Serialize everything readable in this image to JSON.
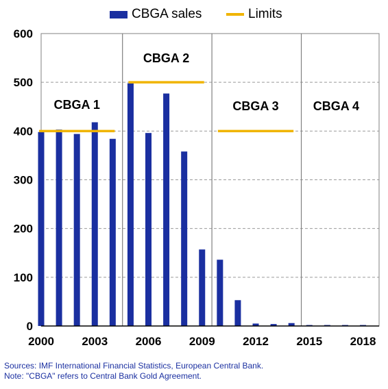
{
  "chart_data": {
    "type": "bar",
    "legend": {
      "bar_label": "CBGA sales",
      "line_label": "Limits",
      "placement": "top"
    },
    "x": [
      2000,
      2001,
      2002,
      2003,
      2004,
      2005,
      2006,
      2007,
      2008,
      2009,
      2010,
      2011,
      2012,
      2013,
      2014,
      2015,
      2016,
      2017,
      2018
    ],
    "series": [
      {
        "name": "CBGA sales",
        "values": [
          398,
          403,
          394,
          418,
          384,
          498,
          396,
          477,
          358,
          157,
          136,
          53,
          5,
          4,
          6,
          2,
          2,
          2,
          2
        ]
      }
    ],
    "limits": [
      {
        "label": "CBGA 1",
        "start": 2000,
        "end": 2004,
        "value": 400
      },
      {
        "label": "CBGA 2",
        "start": 2005,
        "end": 2009,
        "value": 500
      },
      {
        "label": "CBGA 3",
        "start": 2010,
        "end": 2014,
        "value": 400
      },
      {
        "label": "CBGA 4",
        "start": 2015,
        "end": 2018,
        "value": null
      }
    ],
    "x_tick_labels": [
      "2000",
      "2003",
      "2006",
      "2009",
      "2012",
      "2015",
      "2018"
    ],
    "y_tick_labels": [
      "0",
      "100",
      "200",
      "300",
      "400",
      "500",
      "600"
    ],
    "ylim": [
      0,
      600
    ],
    "grid": "horizontal dashed",
    "colors": {
      "bars": "#1a2fa0",
      "limits": "#f0b400",
      "grid": "#999999",
      "dividers": "#808080"
    }
  },
  "notes": {
    "sources": "Sources: IMF International Financial Statistics, European Central Bank.",
    "note": "Note: \"CBGA\" refers to Central Bank Gold Agreement."
  }
}
